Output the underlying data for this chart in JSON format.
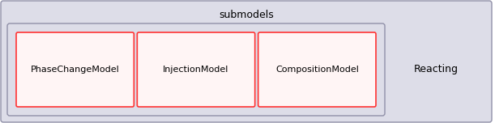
{
  "title": "submodels",
  "outer_bg": "#dddde8",
  "outer_border": "#9090a8",
  "inner_bg": "#dddde8",
  "inner_border": "#9090a8",
  "box_bg": "#fff5f5",
  "box_border": "#ff3333",
  "boxes": [
    "PhaseChangeModel",
    "InjectionModel",
    "CompositionModel"
  ],
  "label": "Reacting",
  "figsize": [
    6.11,
    1.52
  ],
  "dpi": 100
}
